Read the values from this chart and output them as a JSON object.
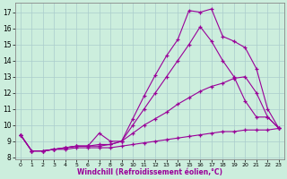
{
  "xlabel": "Windchill (Refroidissement éolien,°C)",
  "background_color": "#cceedd",
  "grid_color": "#aacccc",
  "line_color": "#990099",
  "xlim": [
    -0.5,
    23.5
  ],
  "ylim": [
    7.9,
    17.6
  ],
  "yticks": [
    8,
    9,
    10,
    11,
    12,
    13,
    14,
    15,
    16,
    17
  ],
  "xticks": [
    0,
    1,
    2,
    3,
    4,
    5,
    6,
    7,
    8,
    9,
    10,
    11,
    12,
    13,
    14,
    15,
    16,
    17,
    18,
    19,
    20,
    21,
    22,
    23
  ],
  "lines": [
    {
      "x": [
        0,
        1,
        2,
        3,
        4,
        5,
        6,
        7,
        8,
        9,
        10,
        11,
        12,
        13,
        14,
        15,
        16,
        17,
        18,
        19,
        20,
        21,
        22,
        23
      ],
      "y": [
        9.4,
        8.4,
        8.4,
        8.5,
        8.6,
        8.7,
        8.7,
        8.8,
        8.8,
        9.0,
        10.4,
        11.8,
        13.1,
        14.3,
        15.3,
        17.1,
        17.0,
        17.2,
        15.5,
        15.2,
        14.8,
        13.5,
        11.0,
        9.8
      ]
    },
    {
      "x": [
        0,
        1,
        2,
        3,
        4,
        5,
        6,
        7,
        8,
        9,
        10,
        11,
        12,
        13,
        14,
        15,
        16,
        17,
        18,
        19,
        20,
        21,
        22,
        23
      ],
      "y": [
        9.4,
        8.4,
        8.4,
        8.5,
        8.6,
        8.7,
        8.7,
        8.7,
        8.8,
        9.0,
        10.0,
        11.0,
        12.0,
        13.0,
        14.0,
        15.0,
        16.1,
        15.2,
        14.0,
        13.0,
        11.5,
        10.5,
        10.5,
        9.8
      ]
    },
    {
      "x": [
        0,
        1,
        2,
        3,
        4,
        5,
        6,
        7,
        8,
        9,
        10,
        11,
        12,
        13,
        14,
        15,
        16,
        17,
        18,
        19,
        20,
        21,
        22,
        23
      ],
      "y": [
        9.4,
        8.4,
        8.4,
        8.5,
        8.6,
        8.7,
        8.7,
        9.5,
        9.0,
        9.0,
        9.5,
        10.0,
        10.4,
        10.8,
        11.3,
        11.7,
        12.1,
        12.4,
        12.6,
        12.9,
        13.0,
        12.0,
        10.5,
        9.8
      ]
    },
    {
      "x": [
        0,
        1,
        2,
        3,
        4,
        5,
        6,
        7,
        8,
        9,
        10,
        11,
        12,
        13,
        14,
        15,
        16,
        17,
        18,
        19,
        20,
        21,
        22,
        23
      ],
      "y": [
        9.4,
        8.4,
        8.4,
        8.5,
        8.5,
        8.6,
        8.6,
        8.6,
        8.6,
        8.7,
        8.8,
        8.9,
        9.0,
        9.1,
        9.2,
        9.3,
        9.4,
        9.5,
        9.6,
        9.6,
        9.7,
        9.7,
        9.7,
        9.8
      ]
    }
  ]
}
